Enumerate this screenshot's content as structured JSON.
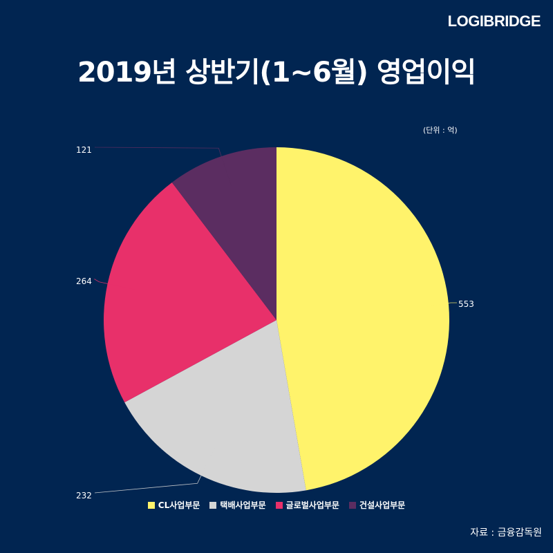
{
  "brand": "LOGIBRIDGE",
  "title": "2019년 상반기(1~6월) 영업이익",
  "unit_note": "(단위 : 억)",
  "source": "자료 : 금융감독원",
  "chart_data": {
    "type": "pie",
    "title": "2019년 상반기(1~6월) 영업이익",
    "unit": "(단위 : 억)",
    "start_angle_deg": 0,
    "direction": "clockwise",
    "legend_position": "bottom",
    "slices": [
      {
        "label": "CL사업부문",
        "value": 553,
        "color": "#FFF36B"
      },
      {
        "label": "택배사업부문",
        "value": 232,
        "color": "#D5D5D5"
      },
      {
        "label": "글로벌사업부문",
        "value": 264,
        "color": "#E8306A"
      },
      {
        "label": "건설사업부문",
        "value": 121,
        "color": "#5B2D61"
      }
    ]
  }
}
